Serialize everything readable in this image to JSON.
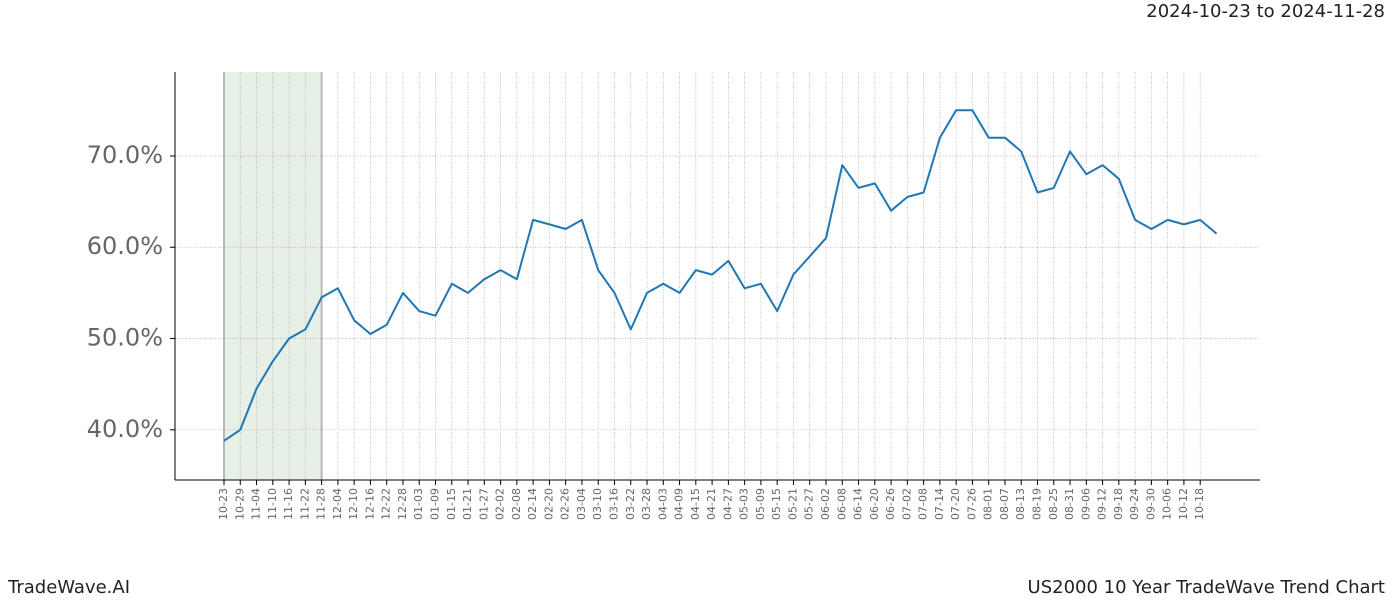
{
  "chart_data": {
    "type": "line",
    "subtitle": "2024-10-23 to 2024-11-28",
    "footer_left": "TradeWave.AI",
    "footer_right": "US2000 10 Year TradeWave Trend Chart",
    "categories": [
      "10-23",
      "10-29",
      "11-04",
      "11-10",
      "11-16",
      "11-22",
      "11-28",
      "12-04",
      "12-10",
      "12-16",
      "12-22",
      "12-28",
      "01-03",
      "01-09",
      "01-15",
      "01-21",
      "01-27",
      "02-02",
      "02-08",
      "02-14",
      "02-20",
      "02-26",
      "03-04",
      "03-10",
      "03-16",
      "03-22",
      "03-28",
      "04-03",
      "04-09",
      "04-15",
      "04-21",
      "04-27",
      "05-03",
      "05-09",
      "05-15",
      "05-21",
      "05-27",
      "06-02",
      "06-08",
      "06-14",
      "06-20",
      "06-26",
      "07-02",
      "07-08",
      "07-14",
      "07-20",
      "07-26",
      "08-01",
      "08-07",
      "08-13",
      "08-19",
      "08-25",
      "08-31",
      "09-06",
      "09-12",
      "09-18",
      "09-24",
      "09-30",
      "10-06",
      "10-12",
      "10-18",
      null
    ],
    "values": [
      38.8,
      40,
      44.5,
      47.5,
      50,
      51,
      54.5,
      55.5,
      52,
      50.5,
      51.5,
      55,
      53,
      52.5,
      56,
      55,
      56.5,
      57.5,
      56.5,
      63,
      62.5,
      62,
      63,
      57.5,
      55,
      51,
      55,
      56,
      55,
      57.5,
      57,
      58.5,
      55.5,
      56,
      53,
      57,
      59,
      61,
      69,
      66.5,
      67,
      64,
      65.5,
      66,
      72,
      75,
      75,
      72,
      72,
      70.5,
      66,
      66.5,
      70.5,
      68,
      69,
      67.5,
      63,
      62,
      63,
      62.5,
      63,
      61.5
    ],
    "color": "#1f77b4",
    "highlight": {
      "start": "10-23",
      "end": "11-28",
      "color": "#e6f0e6"
    },
    "ylim": [
      34.5,
      79.2
    ],
    "yticks": [
      {
        "value": 40,
        "label": "40.0%"
      },
      {
        "value": 50,
        "label": "50.0%"
      },
      {
        "value": 60,
        "label": "60.0%"
      },
      {
        "value": 70,
        "label": "70.0%"
      }
    ],
    "grid": true
  }
}
